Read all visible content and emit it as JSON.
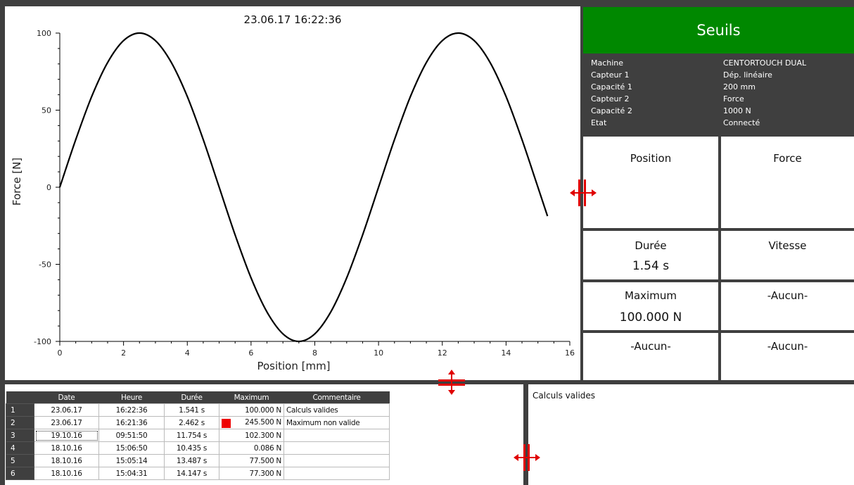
{
  "chart": {
    "timestamp": "23.06.17 16:22:36",
    "xlabel": "Position [mm]",
    "ylabel": "Force [N]",
    "x_ticks": [
      "0",
      "2",
      "4",
      "6",
      "8",
      "10",
      "12",
      "14",
      "16"
    ],
    "y_ticks": [
      "100",
      "50",
      "0",
      "-50",
      "-100"
    ]
  },
  "chart_data": {
    "type": "line",
    "title": "23.06.17 16:22:36",
    "xlabel": "Position [mm]",
    "ylabel": "Force [N]",
    "xlim": [
      0,
      16
    ],
    "ylim": [
      -100,
      100
    ],
    "series": [
      {
        "x": [
          0,
          0.5,
          1,
          1.5,
          2,
          2.5,
          3,
          3.5,
          4,
          4.5,
          5,
          5.5,
          6,
          6.5,
          7,
          7.5,
          8,
          8.5,
          9,
          9.5,
          10,
          10.5,
          11,
          11.5,
          12,
          12.5,
          13,
          13.5,
          14,
          14.5,
          15,
          15.3
        ],
        "y": [
          0,
          30.9,
          58.8,
          80.9,
          95.1,
          100,
          95.1,
          80.9,
          58.8,
          30.9,
          0,
          -30.9,
          -58.8,
          -80.9,
          -95.1,
          -100,
          -95.1,
          -80.9,
          -58.8,
          -30.9,
          0,
          30.9,
          58.8,
          80.9,
          95.1,
          100,
          95.1,
          80.9,
          58.8,
          30.9,
          0,
          -18.7
        ]
      }
    ],
    "grid": false,
    "color": "#000000"
  },
  "seuils": {
    "title": "Seuils",
    "color": "#008800"
  },
  "info": [
    {
      "key": "Machine",
      "value": "CENTORTOUCH DUAL"
    },
    {
      "key": "Capteur 1",
      "value": "Dép. linéaire"
    },
    {
      "key": "Capacité 1",
      "value": "200 mm"
    },
    {
      "key": "Capteur 2",
      "value": "Force"
    },
    {
      "key": "Capacité 2",
      "value": "1000 N"
    },
    {
      "key": "Etat",
      "value": "Connecté"
    }
  ],
  "cells": {
    "position": {
      "label": "Position"
    },
    "force": {
      "label": "Force"
    },
    "duree": {
      "label": "Durée",
      "value": "1.54 s"
    },
    "vitesse": {
      "label": "Vitesse"
    },
    "maximum": {
      "label": "Maximum",
      "value": "100.000 N"
    },
    "aucun1": {
      "label": "-Aucun-"
    },
    "aucun2": {
      "label": "-Aucun-"
    },
    "aucun3": {
      "label": "-Aucun-"
    }
  },
  "table": {
    "headers": [
      "Date",
      "Heure",
      "Durée",
      "Maximum",
      "Commentaire"
    ],
    "rows": [
      {
        "idx": "1",
        "date": "23.06.17",
        "heure": "16:22:36",
        "duree": "1.541 s",
        "maximum": "100.000 N",
        "commentaire": "Calculs valides",
        "flag": false
      },
      {
        "idx": "2",
        "date": "23.06.17",
        "heure": "16:21:36",
        "duree": "2.462 s",
        "maximum": "245.500 N",
        "commentaire": "Maximum non valide",
        "flag": true
      },
      {
        "idx": "3",
        "date": "19.10.16",
        "heure": "09:51:50",
        "duree": "11.754 s",
        "maximum": "102.300 N",
        "commentaire": "",
        "flag": false
      },
      {
        "idx": "4",
        "date": "18.10.16",
        "heure": "15:06:50",
        "duree": "10.435 s",
        "maximum": "0.086 N",
        "commentaire": "",
        "flag": false
      },
      {
        "idx": "5",
        "date": "18.10.16",
        "heure": "15:05:14",
        "duree": "13.487 s",
        "maximum": "77.500 N",
        "commentaire": "",
        "flag": false
      },
      {
        "idx": "6",
        "date": "18.10.16",
        "heure": "15:04:31",
        "duree": "14.147 s",
        "maximum": "77.300 N",
        "commentaire": "",
        "flag": false
      }
    ]
  },
  "comment": {
    "text": "Calculs valides"
  },
  "handles": {
    "color": "#e00000",
    "icon": "resize-handle-icon"
  }
}
